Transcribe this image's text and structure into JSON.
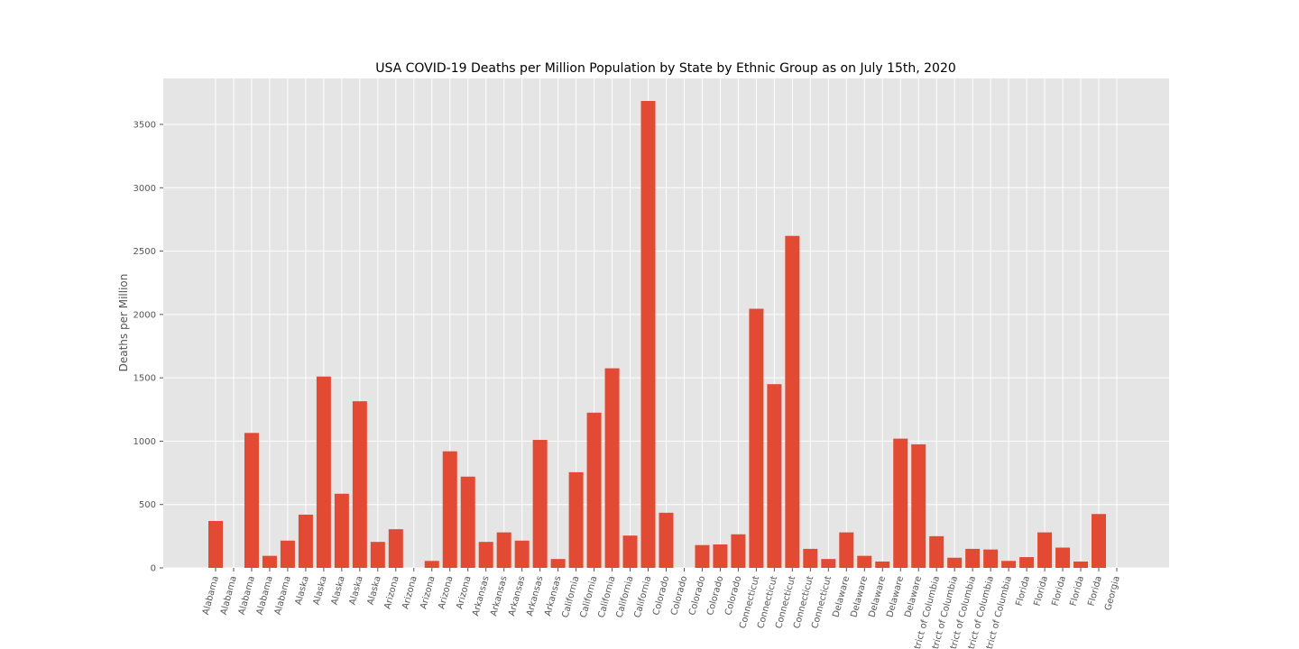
{
  "chart_data": {
    "type": "bar",
    "title": "USA COVID-19 Deaths per Million Population by State by Ethnic Group as on July 15th, 2020",
    "xlabel": "",
    "ylabel": "Deaths per Million",
    "ylim": [
      0,
      3850
    ],
    "yticks": [
      0,
      500,
      1000,
      1500,
      2000,
      2500,
      3000,
      3500
    ],
    "grid": true,
    "colors": {
      "bar": "#E24A33",
      "background": "#E5E5E5",
      "grid": "#FFFFFF"
    },
    "categories": [
      "Alabama",
      "Alabama",
      "Alabama",
      "Alabama",
      "Alabama",
      "Alaska",
      "Alaska",
      "Alaska",
      "Alaska",
      "Alaska",
      "Arizona",
      "Arizona",
      "Arizona",
      "Arizona",
      "Arizona",
      "Arkansas",
      "Arkansas",
      "Arkansas",
      "Arkansas",
      "Arkansas",
      "California",
      "California",
      "California",
      "California",
      "California",
      "Colorado",
      "Colorado",
      "Colorado",
      "Colorado",
      "Colorado",
      "Connecticut",
      "Connecticut",
      "Connecticut",
      "Connecticut",
      "Connecticut",
      "Delaware",
      "Delaware",
      "Delaware",
      "Delaware",
      "Delaware",
      "District of Columbia",
      "District of Columbia",
      "District of Columbia",
      "District of Columbia",
      "District of Columbia",
      "Florida",
      "Florida",
      "Florida",
      "Florida",
      "Florida",
      "Georgia"
    ],
    "values": [
      370,
      0,
      1065,
      95,
      215,
      420,
      1510,
      585,
      1315,
      205,
      305,
      0,
      55,
      920,
      720,
      205,
      280,
      215,
      1010,
      70,
      755,
      1225,
      1575,
      255,
      3685,
      435,
      0,
      180,
      185,
      265,
      2045,
      1450,
      2620,
      150,
      70,
      280,
      95,
      50,
      1020,
      975,
      250,
      80,
      150,
      145,
      55,
      85,
      280,
      160,
      50,
      425,
      0
    ]
  }
}
